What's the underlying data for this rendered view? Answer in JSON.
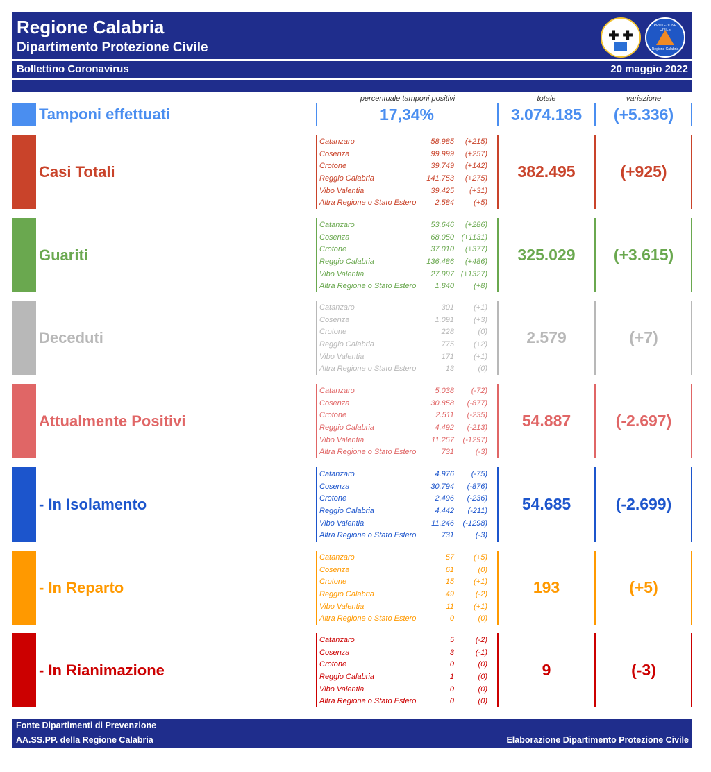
{
  "header": {
    "title": "Regione Calabria",
    "subtitle": "Dipartimento Protezione Civile",
    "bulletin": "Bollettino Coronavirus",
    "date": "20 maggio 2022",
    "logo1_symbol": "✚ ✚",
    "logo2_text": "PROTEZIONE CIVILE",
    "logo2_sub": "Regione Calabria"
  },
  "columns": {
    "percent_header": "percentuale tamponi positivi",
    "total_header": "totale",
    "change_header": "variazione"
  },
  "tamponi": {
    "label": "Tamponi effettuati",
    "percent": "17,34%",
    "total": "3.074.185",
    "change": "(+5.336)",
    "color": "#4a8ef0"
  },
  "sections": [
    {
      "label": "Casi Totali",
      "color": "#c9432a",
      "total": "382.495",
      "change": "(+925)",
      "rows": [
        {
          "province": "Catanzaro",
          "value": "58.985",
          "change": "(+215)"
        },
        {
          "province": "Cosenza",
          "value": "99.999",
          "change": "(+257)"
        },
        {
          "province": "Crotone",
          "value": "39.749",
          "change": "(+142)"
        },
        {
          "province": "Reggio Calabria",
          "value": "141.753",
          "change": "(+275)"
        },
        {
          "province": "Vibo Valentia",
          "value": "39.425",
          "change": "(+31)"
        },
        {
          "province": "Altra Regione o Stato Estero",
          "value": "2.584",
          "change": "(+5)"
        }
      ]
    },
    {
      "label": "Guariti",
      "color": "#6aa84f",
      "total": "325.029",
      "change": "(+3.615)",
      "rows": [
        {
          "province": "Catanzaro",
          "value": "53.646",
          "change": "(+286)"
        },
        {
          "province": "Cosenza",
          "value": "68.050",
          "change": "(+1131)"
        },
        {
          "province": "Crotone",
          "value": "37.010",
          "change": "(+377)"
        },
        {
          "province": "Reggio Calabria",
          "value": "136.486",
          "change": "(+486)"
        },
        {
          "province": "Vibo Valentia",
          "value": "27.997",
          "change": "(+1327)"
        },
        {
          "province": "Altra Regione o Stato Estero",
          "value": "1.840",
          "change": "(+8)"
        }
      ]
    },
    {
      "label": "Deceduti",
      "color": "#b8b8b8",
      "total": "2.579",
      "change": "(+7)",
      "rows": [
        {
          "province": "Catanzaro",
          "value": "301",
          "change": "(+1)"
        },
        {
          "province": "Cosenza",
          "value": "1.091",
          "change": "(+3)"
        },
        {
          "province": "Crotone",
          "value": "228",
          "change": "(0)"
        },
        {
          "province": "Reggio Calabria",
          "value": "775",
          "change": "(+2)"
        },
        {
          "province": "Vibo Valentia",
          "value": "171",
          "change": "(+1)"
        },
        {
          "province": "Altra Regione o Stato Estero",
          "value": "13",
          "change": "(0)"
        }
      ]
    },
    {
      "label": "Attualmente Positivi",
      "color": "#e06666",
      "total": "54.887",
      "change": "(-2.697)",
      "rows": [
        {
          "province": "Catanzaro",
          "value": "5.038",
          "change": "(-72)"
        },
        {
          "province": "Cosenza",
          "value": "30.858",
          "change": "(-877)"
        },
        {
          "province": "Crotone",
          "value": "2.511",
          "change": "(-235)"
        },
        {
          "province": "Reggio Calabria",
          "value": "4.492",
          "change": "(-213)"
        },
        {
          "province": "Vibo Valentia",
          "value": "11.257",
          "change": "(-1297)"
        },
        {
          "province": "Altra Regione o Stato Estero",
          "value": "731",
          "change": "(-3)"
        }
      ]
    },
    {
      "label": " - In Isolamento",
      "color": "#1c55cc",
      "total": "54.685",
      "change": "(-2.699)",
      "rows": [
        {
          "province": "Catanzaro",
          "value": "4.976",
          "change": "(-75)"
        },
        {
          "province": "Cosenza",
          "value": "30.794",
          "change": "(-876)"
        },
        {
          "province": "Crotone",
          "value": "2.496",
          "change": "(-236)"
        },
        {
          "province": "Reggio Calabria",
          "value": "4.442",
          "change": "(-211)"
        },
        {
          "province": "Vibo Valentia",
          "value": "11.246",
          "change": "(-1298)"
        },
        {
          "province": "Altra Regione o Stato Estero",
          "value": "731",
          "change": "(-3)"
        }
      ]
    },
    {
      "label": " - In Reparto",
      "color": "#ff9900",
      "total": "193",
      "change": "(+5)",
      "rows": [
        {
          "province": "Catanzaro",
          "value": "57",
          "change": "(+5)"
        },
        {
          "province": "Cosenza",
          "value": "61",
          "change": "(0)"
        },
        {
          "province": "Crotone",
          "value": "15",
          "change": "(+1)"
        },
        {
          "province": "Reggio Calabria",
          "value": "49",
          "change": "(-2)"
        },
        {
          "province": "Vibo Valentia",
          "value": "11",
          "change": "(+1)"
        },
        {
          "province": "Altra Regione o Stato Estero",
          "value": "0",
          "change": "(0)"
        }
      ]
    },
    {
      "label": " - In Rianimazione",
      "color": "#cc0000",
      "total": "9",
      "change": "(-3)",
      "rows": [
        {
          "province": "Catanzaro",
          "value": "5",
          "change": "(-2)"
        },
        {
          "province": "Cosenza",
          "value": "3",
          "change": "(-1)"
        },
        {
          "province": "Crotone",
          "value": "0",
          "change": "(0)"
        },
        {
          "province": "Reggio Calabria",
          "value": "1",
          "change": "(0)"
        },
        {
          "province": "Vibo Valentia",
          "value": "0",
          "change": "(0)"
        },
        {
          "province": "Altra Regione o Stato Estero",
          "value": "0",
          "change": "(0)"
        }
      ]
    }
  ],
  "footer": {
    "line1": "Fonte Dipartimenti di Prevenzione",
    "line2": "AA.SS.PP.  della Regione Calabria",
    "credit": "Elaborazione Dipartimento Protezione Civile"
  }
}
